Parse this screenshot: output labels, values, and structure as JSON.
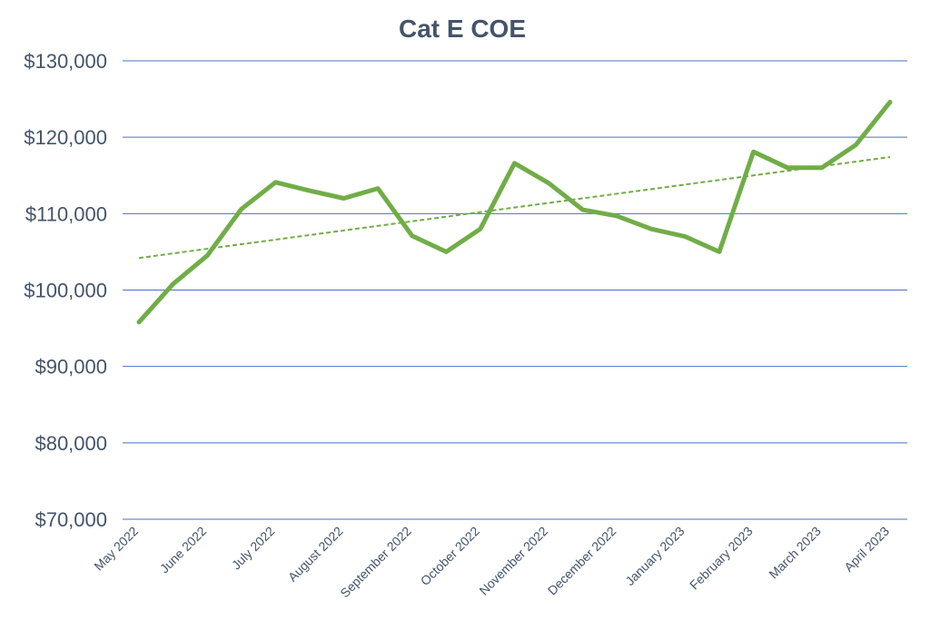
{
  "chart_data": {
    "type": "line",
    "title": "Cat E COE",
    "xlabel": "",
    "ylabel": "",
    "ylim": [
      70000,
      130000
    ],
    "yticks": [
      70000,
      80000,
      90000,
      100000,
      110000,
      120000,
      130000
    ],
    "ytick_labels": [
      "$70,000",
      "$80,000",
      "$90,000",
      "$100,000",
      "$110,000",
      "$120,000",
      "$130,000"
    ],
    "x_labels": [
      "May 2022",
      "June 2022",
      "July 2022",
      "August 2022",
      "September 2022",
      "October 2022",
      "November 2022",
      "December 2022",
      "January 2023",
      "February 2023",
      "March 2023",
      "April 2023"
    ],
    "grid": true,
    "legend": "none",
    "series": [
      {
        "values": [
          95800,
          100800,
          104500,
          110600,
          114100,
          113000,
          112000,
          113300,
          107100,
          105000,
          108000,
          116600,
          114000,
          110500,
          109700,
          108000,
          107000,
          105000,
          118100,
          116000,
          116000,
          119000,
          124600
        ],
        "color": "#70ad47",
        "style": "solid"
      },
      {
        "values": [
          104200,
          117400
        ],
        "color": "#70ad47",
        "style": "dashed-trendline"
      }
    ]
  }
}
